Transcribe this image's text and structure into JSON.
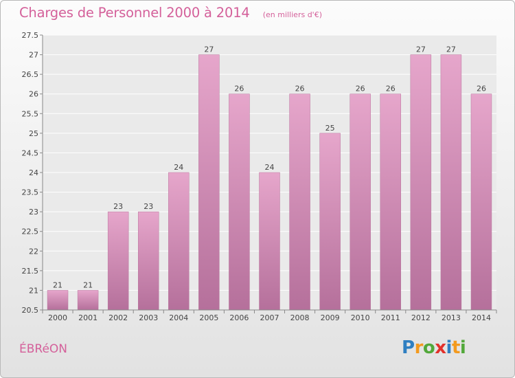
{
  "chart_data": {
    "type": "bar",
    "title": "Charges de Personnel 2000 à 2014",
    "subtitle": "(en milliers d'€)",
    "categories": [
      "2000",
      "2001",
      "2002",
      "2003",
      "2004",
      "2005",
      "2006",
      "2007",
      "2008",
      "2009",
      "2010",
      "2011",
      "2012",
      "2013",
      "2014"
    ],
    "values": [
      21,
      21,
      23,
      23,
      24,
      27,
      26,
      24,
      26,
      25,
      26,
      26,
      27,
      27,
      26
    ],
    "data_labels": [
      "21",
      "21",
      "23",
      "23",
      "24",
      "27",
      "26",
      "24",
      "26",
      "25",
      "26",
      "26",
      "27",
      "27",
      "26"
    ],
    "ylim": [
      20.5,
      27.5
    ],
    "yticks": [
      20.5,
      21,
      21.5,
      22,
      22.5,
      23,
      23.5,
      24,
      24.5,
      25,
      25.5,
      26,
      26.5,
      27,
      27.5
    ],
    "grid": true,
    "bar_color_top": "#e6a6cb",
    "bar_color_bottom": "#b5709b",
    "title_color": "#d4609a"
  },
  "footer": {
    "commune": "ÉBRéON",
    "logo_text": "Proxiti",
    "logo_letters": [
      {
        "ch": "P",
        "color": "#2f7fc1"
      },
      {
        "ch": "r",
        "color": "#f39a1e"
      },
      {
        "ch": "o",
        "color": "#52a83a"
      },
      {
        "ch": "x",
        "color": "#e2312b"
      },
      {
        "ch": "i",
        "color": "#2f7fc1"
      },
      {
        "ch": "t",
        "color": "#f39a1e"
      },
      {
        "ch": "i",
        "color": "#52a83a"
      }
    ]
  }
}
